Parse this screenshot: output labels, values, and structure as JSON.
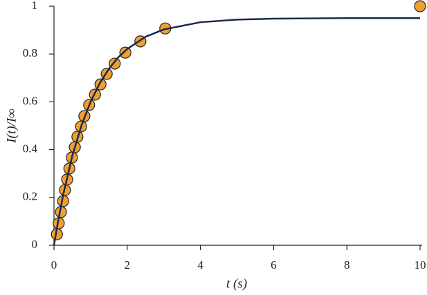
{
  "chart_data": {
    "type": "scatter",
    "x_label": "t (s)",
    "y_label": "I(t)/I∞",
    "xlim": [
      0,
      10
    ],
    "ylim": [
      0,
      1
    ],
    "xticks": [
      0,
      2,
      4,
      6,
      8,
      10
    ],
    "yticks": [
      0,
      0.2,
      0.4,
      0.6,
      0.8,
      1
    ],
    "series": [
      {
        "type": "scatter",
        "color": "#f0a030",
        "x": [
          0.08,
          0.13,
          0.19,
          0.25,
          0.3,
          0.36,
          0.42,
          0.49,
          0.57,
          0.64,
          0.74,
          0.83,
          0.96,
          1.12,
          1.27,
          1.44,
          1.66,
          1.95,
          2.36,
          3.04,
          10
        ],
        "values": [
          0.046,
          0.092,
          0.139,
          0.185,
          0.231,
          0.275,
          0.321,
          0.367,
          0.41,
          0.454,
          0.497,
          0.54,
          0.587,
          0.63,
          0.673,
          0.717,
          0.76,
          0.806,
          0.853,
          0.907,
          1
        ]
      },
      {
        "type": "line",
        "color": "#1a2a4f",
        "x": [
          0,
          0.1,
          0.25,
          0.5,
          0.75,
          1,
          1.25,
          1.5,
          1.75,
          2,
          2.5,
          3,
          4,
          5,
          6,
          8,
          10
        ],
        "values": [
          0,
          0.09,
          0.21,
          0.374,
          0.501,
          0.6,
          0.678,
          0.738,
          0.785,
          0.821,
          0.872,
          0.903,
          0.933,
          0.944,
          0.948,
          0.95,
          0.95
        ]
      }
    ]
  }
}
